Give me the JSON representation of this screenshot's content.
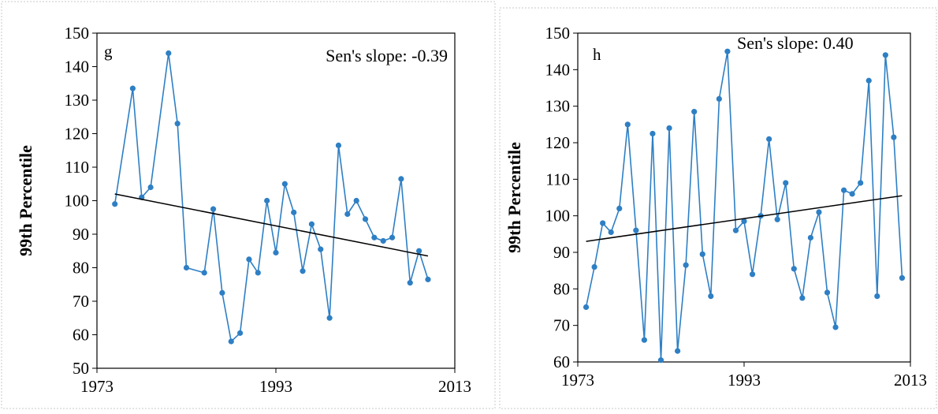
{
  "colors": {
    "series": "#2E7FC4",
    "trend": "#000000",
    "frame": "#C8C8C8"
  },
  "chart_data": [
    {
      "type": "line",
      "panel_label": "g",
      "annotation": "Sen's slope: -0.39",
      "ylabel": "99th Percentile",
      "xlabel": "",
      "xlim": [
        1973,
        2013
      ],
      "ylim": [
        50,
        150
      ],
      "xticks": [
        1973,
        1993,
        2013
      ],
      "yticks": [
        50,
        60,
        70,
        80,
        90,
        100,
        110,
        120,
        130,
        140,
        150
      ],
      "series": [
        {
          "x": [
            1975,
            1977,
            1978,
            1979,
            1981,
            1982,
            1983,
            1985,
            1986,
            1987,
            1988,
            1989,
            1990,
            1991,
            1992,
            1993,
            1994,
            1995,
            1996,
            1997,
            1998,
            1999,
            2000,
            2001,
            2002,
            2003,
            2004,
            2005,
            2006,
            2007,
            2008,
            2009,
            2010
          ],
          "values": [
            99,
            133.5,
            101,
            104,
            144,
            123,
            80,
            78.5,
            97.5,
            72.5,
            58,
            60.5,
            82.5,
            78.5,
            100,
            84.5,
            105,
            96.5,
            79,
            93,
            85.5,
            65,
            116.5,
            96,
            100,
            94.5,
            89,
            88,
            89,
            106.5,
            75.5,
            85,
            76.5
          ]
        }
      ],
      "trend": {
        "x": [
          1975,
          2010
        ],
        "values": [
          102,
          83.5
        ]
      }
    },
    {
      "type": "line",
      "panel_label": "h",
      "annotation": "Sen's slope: 0.40",
      "ylabel": "99th Percentile",
      "xlabel": "",
      "xlim": [
        1973,
        2013
      ],
      "ylim": [
        60,
        150
      ],
      "xticks": [
        1973,
        1993,
        2013
      ],
      "yticks": [
        60,
        70,
        80,
        90,
        100,
        110,
        120,
        130,
        140,
        150
      ],
      "series": [
        {
          "x": [
            1974,
            1975,
            1976,
            1977,
            1978,
            1979,
            1980,
            1981,
            1982,
            1983,
            1984,
            1985,
            1986,
            1987,
            1988,
            1989,
            1990,
            1991,
            1992,
            1993,
            1994,
            1995,
            1996,
            1997,
            1998,
            1999,
            2000,
            2001,
            2002,
            2003,
            2004,
            2005,
            2006,
            2007,
            2008,
            2009,
            2010,
            2011,
            2012
          ],
          "values": [
            75,
            86,
            98,
            95.5,
            102,
            125,
            96,
            66,
            122.5,
            60.5,
            124,
            63,
            86.5,
            128.5,
            89.5,
            78,
            132,
            145,
            96,
            98.5,
            84,
            100,
            121,
            99,
            109,
            85.5,
            77.5,
            94,
            101,
            79,
            69.5,
            107,
            106,
            109,
            137,
            78,
            144,
            121.5,
            83
          ]
        }
      ],
      "trend": {
        "x": [
          1974,
          2012
        ],
        "values": [
          93,
          105.5
        ]
      }
    }
  ]
}
